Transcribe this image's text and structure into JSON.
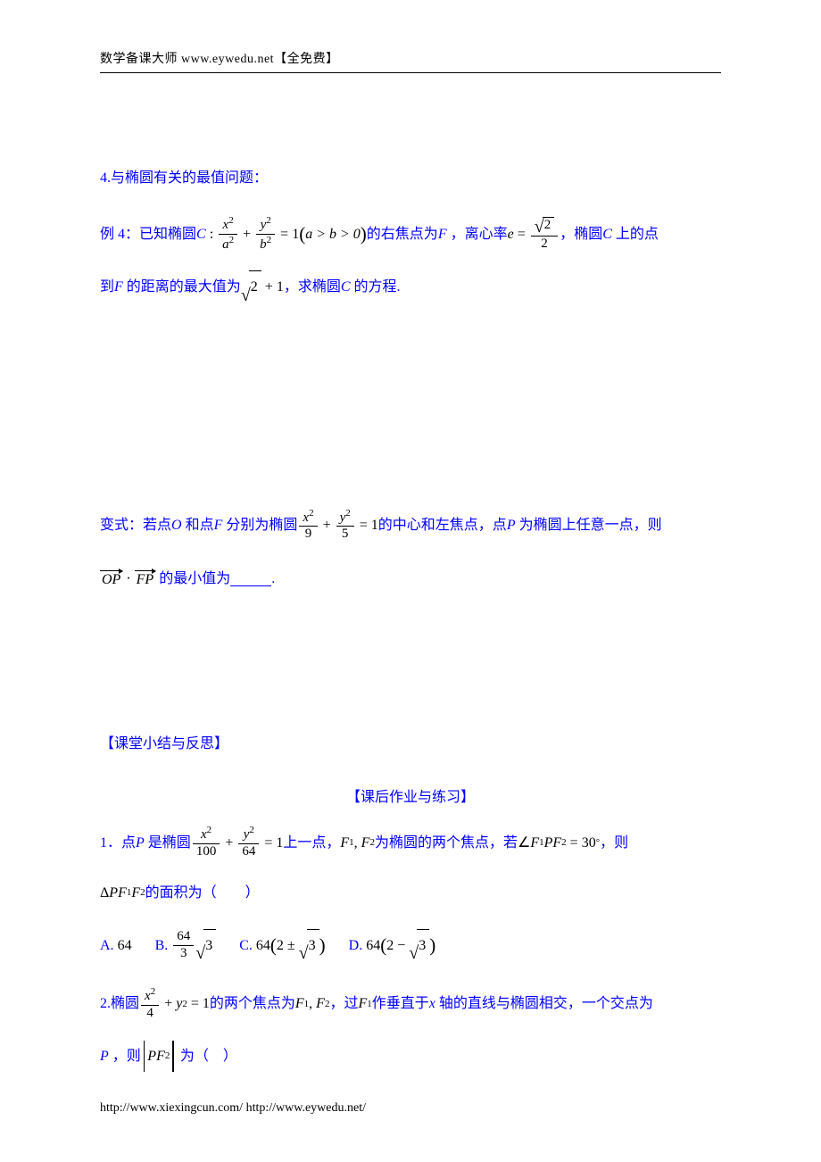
{
  "colors": {
    "blue": "#0000ff",
    "black": "#000000",
    "bg": "#ffffff"
  },
  "header": "数学备课大师  www.eywedu.net【全免费】",
  "footer": "http://www.xiexingcun.com/ http://www.eywedu.net/",
  "section4_title": "4.与椭圆有关的最值问题：",
  "ex4": {
    "prefix": "例 4：已知椭圆",
    "ellipse_label": "C",
    "eq_lhs_x_num": "x",
    "eq_lhs_x_expnum": "2",
    "eq_lhs_x_den": "a",
    "eq_lhs_x_expden": "2",
    "eq_lhs_y_num": "y",
    "eq_lhs_y_expnum": "2",
    "eq_lhs_y_den": "b",
    "eq_lhs_y_expden": "2",
    "eq_rhs": "1",
    "cond": "a > b > 0",
    "mid1": "的右焦点为",
    "focus": "F",
    "mid2": "，离心率",
    "ecc_var": "e",
    "ecc_num_rad": "2",
    "ecc_den": "2",
    "mid3": "，椭圆",
    "mid3b": "上的点",
    "line2_a": "到",
    "line2_b": "的距离的最大值为",
    "maxdist_rad": "2",
    "maxdist_plus": "1",
    "line2_c": "，求椭圆",
    "line2_d": "的方程."
  },
  "bianshi": {
    "prefix": "变式：若点",
    "O": "O",
    "and": "和点",
    "F": "F",
    "mid1": "分别为椭圆",
    "eq_x_num": "x",
    "eq_x_exp": "2",
    "eq_x_den": "9",
    "eq_y_num": "y",
    "eq_y_exp": "2",
    "eq_y_den": "5",
    "eq_rhs": "1",
    "mid2": "的中心和左焦点，点",
    "P": "P",
    "mid3": "为椭圆上任意一点，则",
    "vec1": "OP",
    "vec2": "FP",
    "tail": "的最小值为",
    "period": "."
  },
  "summary": "【课堂小结与反思】",
  "hw_title": "【课后作业与练习】",
  "q1": {
    "num": "1．点",
    "P": "P",
    "mid1": "是椭圆",
    "x_num": "x",
    "x_exp": "2",
    "x_den": "100",
    "y_num": "y",
    "y_exp": "2",
    "y_den": "64",
    "rhs": "1",
    "mid2": "上一点，",
    "F1": "F",
    "F1s": "1",
    "F2": "F",
    "F2s": "2",
    "mid3": "为椭圆的两个焦点，若",
    "angle_val": "30",
    "mid4": "，则",
    "tri_text": "的面积为（　　）",
    "choices": {
      "A_label": "A.",
      "A": "64",
      "B_label": "B.",
      "B_num": "64",
      "B_den": "3",
      "B_rad": "3",
      "C_label": "C.",
      "C_coef": "64",
      "C_inner_a": "2",
      "C_inner_rad": "3",
      "D_label": "D.",
      "D_coef": "64",
      "D_inner_a": "2",
      "D_inner_rad": "3"
    }
  },
  "q2": {
    "num": "2.椭圆",
    "x_num": "x",
    "x_exp": "2",
    "x_den": "4",
    "y": "y",
    "y_exp": "2",
    "rhs": "1",
    "mid1": "的两个焦点为",
    "F1": "F",
    "F1s": "1",
    "F2": "F",
    "F2s": "2",
    "mid2": "，过",
    "mid3": "作垂直于",
    "axis": "x",
    "mid4": "轴的直线与椭圆相交，一个交点为",
    "P": "P",
    "mid5": "，则",
    "tail": "为（　）"
  }
}
